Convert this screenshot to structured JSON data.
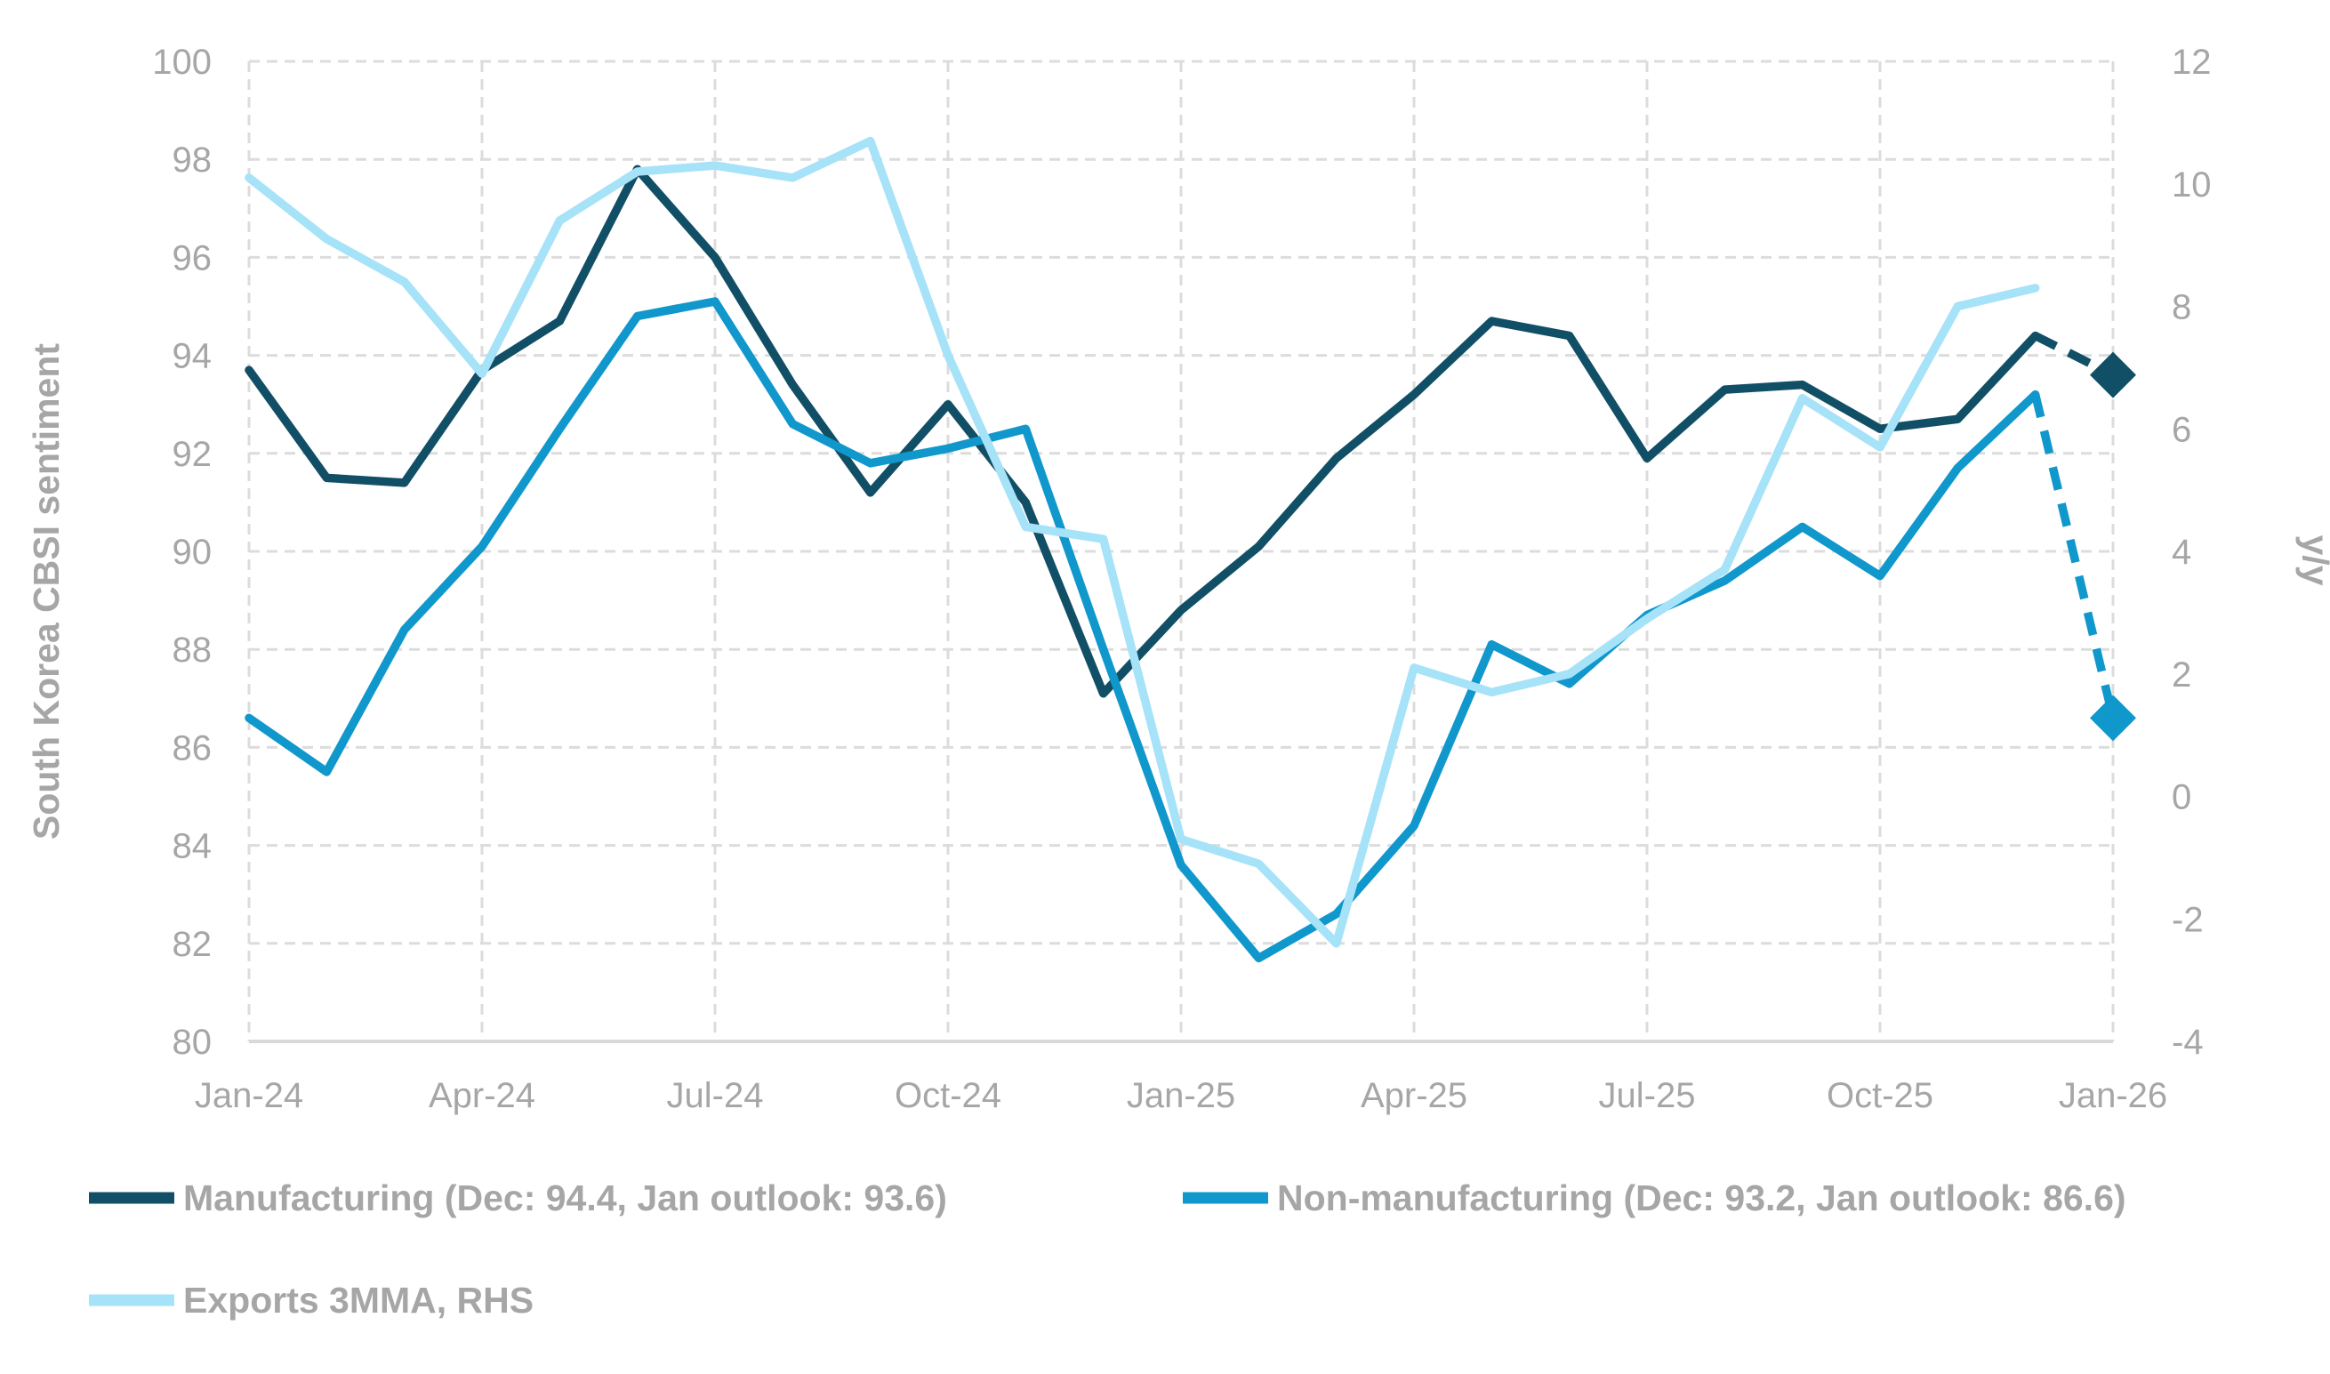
{
  "page": {
    "background": "#ffffff"
  },
  "colors": {
    "grid": "#dcdcdc",
    "axis_line": "#d9d9d9",
    "text": "#a6a6a6",
    "manufacturing": "#114f66",
    "non_manufacturing": "#1097cc",
    "exports": "#a6e2f8"
  },
  "chart_data": {
    "type": "line",
    "title": "",
    "x": [
      "Jan-24",
      "Feb-24",
      "Mar-24",
      "Apr-24",
      "May-24",
      "Jun-24",
      "Jul-24",
      "Aug-24",
      "Sep-24",
      "Oct-24",
      "Nov-24",
      "Dec-24",
      "Jan-25",
      "Feb-25",
      "Mar-25",
      "Apr-25",
      "May-25",
      "Jun-25",
      "Jul-25",
      "Aug-25",
      "Sep-25",
      "Oct-25",
      "Nov-25",
      "Dec-25",
      "Jan-26"
    ],
    "x_tick_labels": [
      "Jan-24",
      "Apr-24",
      "Jul-24",
      "Oct-24",
      "Jan-25",
      "Apr-25",
      "Jul-25",
      "Oct-25",
      "Jan-26"
    ],
    "x_tick_indices": [
      0,
      3,
      6,
      9,
      12,
      15,
      18,
      21,
      24
    ],
    "grid": true,
    "legend_position": "bottom-left",
    "left_axis": {
      "title": "South Korea CBSI sentiment",
      "min": 80,
      "max": 100,
      "step": 2,
      "tick_labels": [
        "80",
        "82",
        "84",
        "86",
        "88",
        "90",
        "92",
        "94",
        "96",
        "98",
        "100"
      ]
    },
    "right_axis": {
      "title": "y/y",
      "min": -4,
      "max": 12,
      "step": 2,
      "tick_labels": [
        "-4",
        "-2",
        "0",
        "2",
        "4",
        "6",
        "8",
        "10",
        "12"
      ]
    },
    "series": [
      {
        "name": "Manufacturing (Dec: 94.4, Jan outlook: 93.6)",
        "axis": "left",
        "color": "#114f66",
        "style": "solid_with_dashed_outlook",
        "marker_last": "diamond",
        "values": [
          93.7,
          91.5,
          91.4,
          93.7,
          94.7,
          97.8,
          96.0,
          93.4,
          91.2,
          93.0,
          91.0,
          87.1,
          88.8,
          90.1,
          91.9,
          93.2,
          94.7,
          94.4,
          91.9,
          93.3,
          93.4,
          92.5,
          92.7,
          94.4,
          93.6
        ]
      },
      {
        "name": "Non-manufacturing (Dec: 93.2, Jan outlook: 86.6)",
        "axis": "left",
        "color": "#1097cc",
        "style": "solid_with_dashed_outlook",
        "marker_last": "diamond",
        "values": [
          86.6,
          85.5,
          88.4,
          90.1,
          92.5,
          94.8,
          95.1,
          92.6,
          91.8,
          92.1,
          92.5,
          88.0,
          83.6,
          81.7,
          82.6,
          84.4,
          88.1,
          87.3,
          88.7,
          89.4,
          90.5,
          89.5,
          91.7,
          93.2,
          86.6
        ]
      },
      {
        "name": "Exports 3MMA, RHS",
        "axis": "right",
        "color": "#a6e2f8",
        "style": "solid",
        "marker_last": null,
        "values": [
          10.1,
          9.1,
          8.4,
          6.9,
          9.4,
          10.2,
          10.3,
          10.1,
          10.7,
          7.2,
          4.4,
          4.2,
          -0.7,
          -1.1,
          -2.4,
          2.1,
          1.7,
          2.0,
          2.9,
          3.7,
          6.5,
          5.7,
          8.0,
          8.3,
          null
        ]
      }
    ]
  },
  "legend": {
    "row1_item1": "Manufacturing (Dec: 94.4, Jan outlook: 93.6)",
    "row1_item2": "Non-manufacturing (Dec: 93.2, Jan outlook: 86.6)",
    "row2_item1": "Exports 3MMA, RHS"
  }
}
